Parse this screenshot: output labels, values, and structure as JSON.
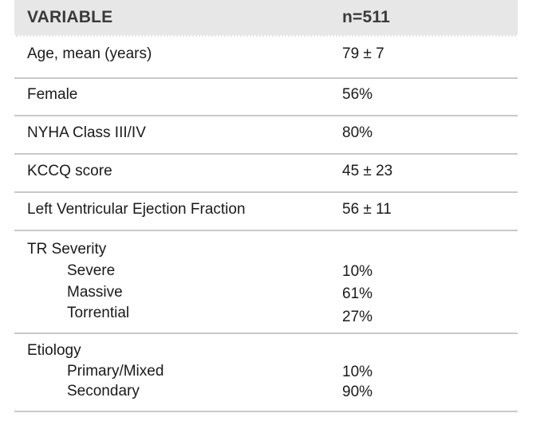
{
  "header": {
    "variable": "VARIABLE",
    "n": "n=511"
  },
  "rows": [
    {
      "label": "Age, mean (years)",
      "value": "79 ± 7"
    },
    {
      "label": "Female",
      "value": "56%"
    },
    {
      "label": "NYHA Class III/IV",
      "value": "80%"
    },
    {
      "label": "KCCQ score",
      "value": "45 ± 23"
    },
    {
      "label": "Left Ventricular Ejection Fraction",
      "value": "56 ± 11"
    }
  ],
  "tr_severity": {
    "label": "TR Severity",
    "items": [
      {
        "label": "Severe",
        "value": "10%"
      },
      {
        "label": "Massive",
        "value": "61%"
      },
      {
        "label": "Torrential",
        "value": "27%"
      }
    ]
  },
  "etiology": {
    "label": "Etiology",
    "items": [
      {
        "label": "Primary/Mixed",
        "value": "10%"
      },
      {
        "label": "Secondary",
        "value": "90%"
      }
    ]
  }
}
